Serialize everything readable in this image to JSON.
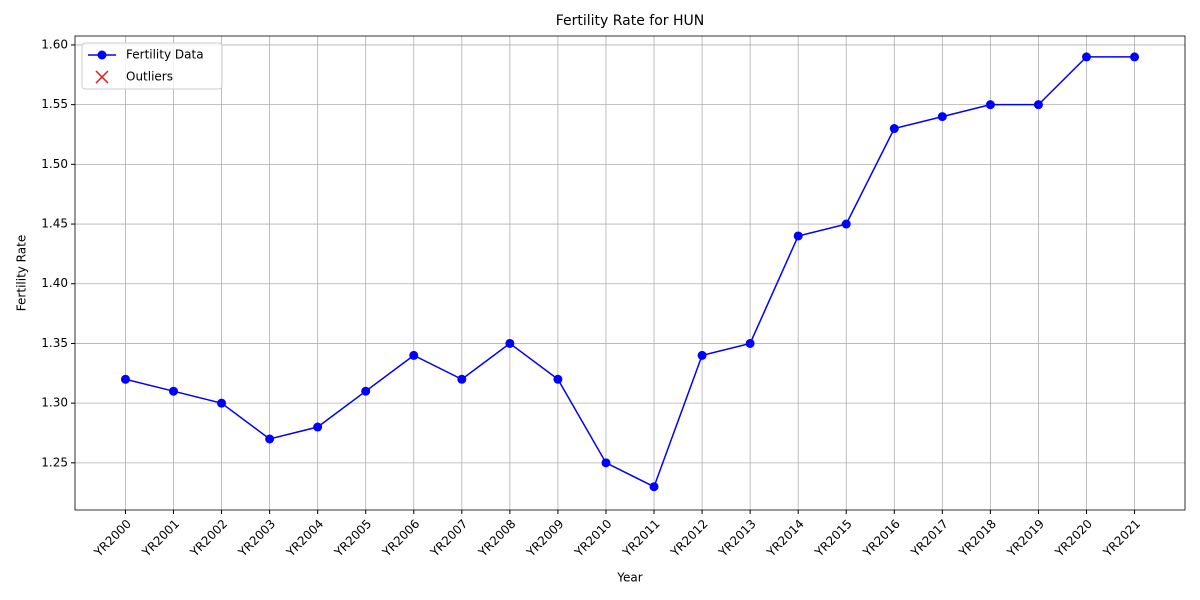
{
  "chart_data": {
    "type": "line",
    "title": "Fertility Rate for HUN",
    "x_label": "Year",
    "y_label": "Fertility Rate",
    "categories": [
      "YR2000",
      "YR2001",
      "YR2002",
      "YR2003",
      "YR2004",
      "YR2005",
      "YR2006",
      "YR2007",
      "YR2008",
      "YR2009",
      "YR2010",
      "YR2011",
      "YR2012",
      "YR2013",
      "YR2014",
      "YR2015",
      "YR2016",
      "YR2017",
      "YR2018",
      "YR2019",
      "YR2020",
      "YR2021"
    ],
    "series": [
      {
        "name": "Fertility Data",
        "color": "#0000ff",
        "marker": "o",
        "values": [
          1.32,
          1.31,
          1.3,
          1.27,
          1.28,
          1.31,
          1.34,
          1.32,
          1.35,
          1.32,
          1.25,
          1.23,
          1.34,
          1.35,
          1.44,
          1.45,
          1.53,
          1.54,
          1.55,
          1.55,
          1.59,
          1.59
        ]
      },
      {
        "name": "Outliers",
        "color": "#e31a1c",
        "marker": "x",
        "values": [
          null,
          null,
          null,
          null,
          null,
          null,
          null,
          null,
          null,
          null,
          null,
          null,
          null,
          null,
          null,
          null,
          null,
          null,
          null,
          null,
          null,
          null
        ]
      }
    ],
    "ylim": [
      1.2105,
      1.6075
    ],
    "yticks": [
      1.25,
      {
        "value": 1.3,
        "label": "1.30"
      },
      1.35,
      {
        "value": 1.4,
        "label": "1.40"
      },
      1.45,
      {
        "value": 1.5,
        "label": "1.50"
      },
      1.55,
      {
        "value": 1.6,
        "label": "1.60"
      }
    ],
    "grid": true,
    "legend": "upper left"
  }
}
